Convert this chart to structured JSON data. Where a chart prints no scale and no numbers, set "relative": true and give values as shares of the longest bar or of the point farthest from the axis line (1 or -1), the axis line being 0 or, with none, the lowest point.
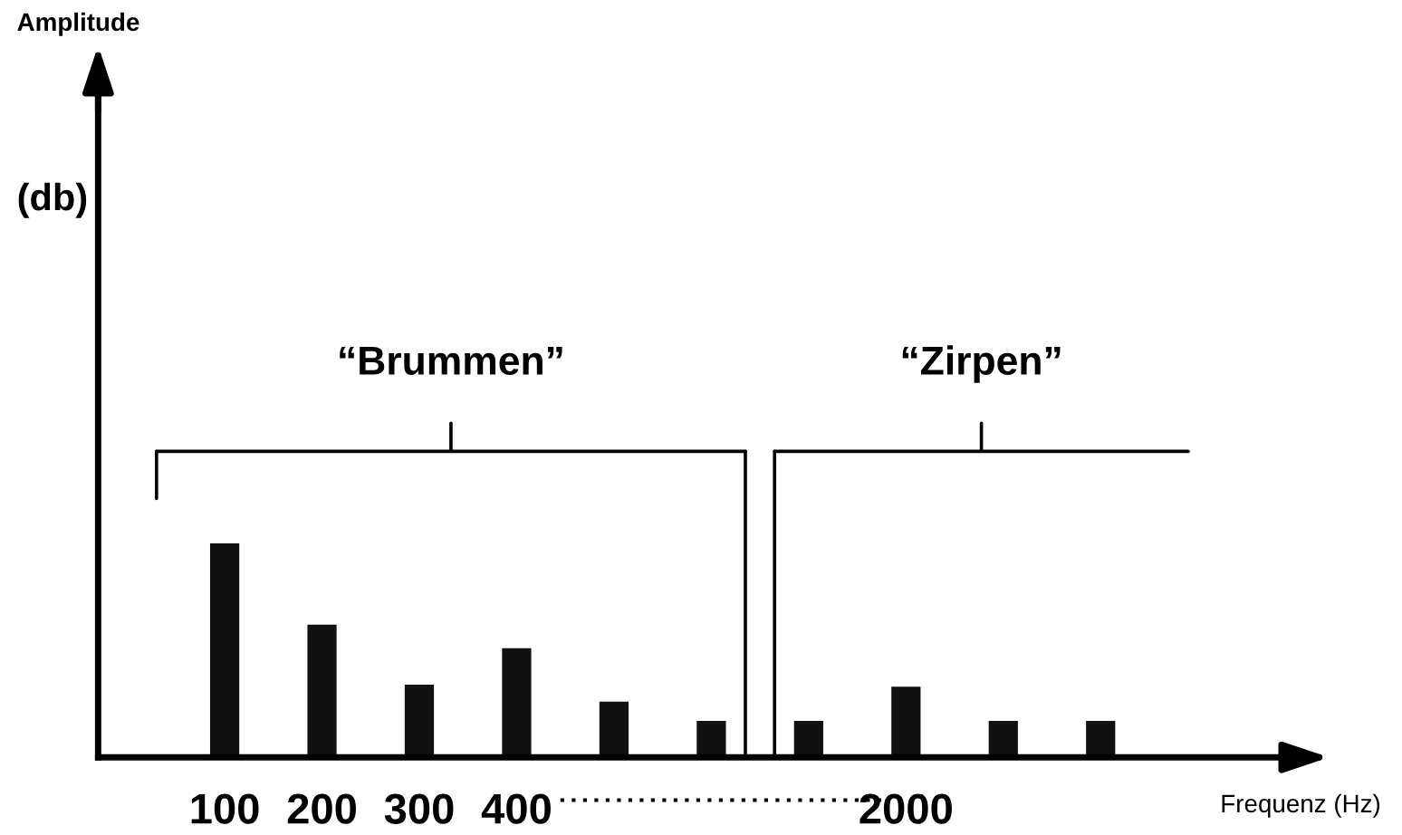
{
  "chart_data": {
    "type": "bar",
    "relative": true,
    "xlabel": "Frequenz (Hz)",
    "categories": [
      "100",
      "200",
      "300",
      "400",
      null,
      null,
      null,
      "2000",
      null,
      null
    ],
    "values": [
      1,
      0.62,
      0.34,
      0.51,
      0.26,
      0.17,
      0.17,
      0.33,
      0.17,
      0.17
    ],
    "color": "#111111",
    "annotations": [
      "Amplitude",
      "(db)",
      "“Brummen”",
      "“Zirpen”"
    ],
    "grid": false,
    "legend": false
  }
}
